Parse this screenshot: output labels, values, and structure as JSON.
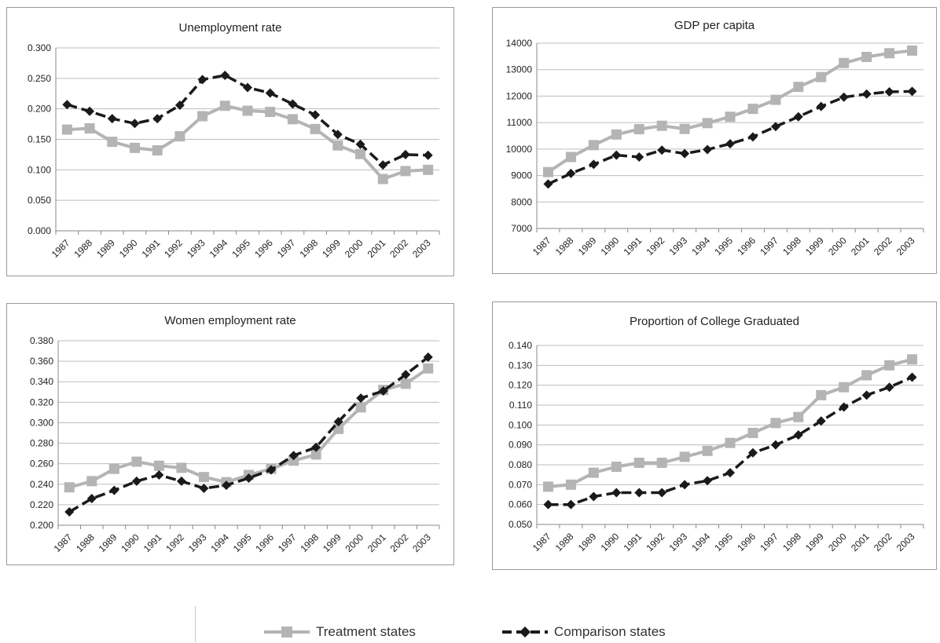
{
  "colors": {
    "treatment": "#b4b4b4",
    "comparison": "#1a1a1a",
    "grid": "#bdbdbd",
    "axis": "#888888",
    "text": "#222222"
  },
  "legend": {
    "treatment_label": "Treatment states",
    "comparison_label": "Comparison states"
  },
  "chart_data": [
    {
      "type": "line",
      "title": "Unemployment rate",
      "xlabel": "",
      "ylabel": "",
      "categories": [
        "1987",
        "1988",
        "1989",
        "1990",
        "1991",
        "1992",
        "1993",
        "1994",
        "1995",
        "1996",
        "1997",
        "1998",
        "1999",
        "2000",
        "2001",
        "2002",
        "2003"
      ],
      "ylim": [
        0,
        0.3
      ],
      "yticks": [
        "0.000",
        "0.050",
        "0.100",
        "0.150",
        "0.200",
        "0.250",
        "0.300"
      ],
      "grid": true,
      "series": [
        {
          "name": "Treatment states",
          "values": [
            0.166,
            0.168,
            0.146,
            0.136,
            0.132,
            0.155,
            0.188,
            0.205,
            0.197,
            0.195,
            0.183,
            0.167,
            0.14,
            0.126,
            0.085,
            0.098,
            0.1
          ]
        },
        {
          "name": "Comparison states",
          "values": [
            0.207,
            0.196,
            0.184,
            0.176,
            0.184,
            0.206,
            0.248,
            0.255,
            0.235,
            0.226,
            0.208,
            0.19,
            0.158,
            0.142,
            0.108,
            0.125,
            0.124
          ]
        }
      ]
    },
    {
      "type": "line",
      "title": "GDP per capita",
      "xlabel": "",
      "ylabel": "",
      "categories": [
        "1987",
        "1988",
        "1989",
        "1990",
        "1991",
        "1992",
        "1993",
        "1994",
        "1995",
        "1996",
        "1997",
        "1998",
        "1999",
        "2000",
        "2001",
        "2002",
        "2003"
      ],
      "ylim": [
        7000,
        14000
      ],
      "yticks": [
        "7000",
        "8000",
        "9000",
        "10000",
        "11000",
        "12000",
        "13000",
        "14000"
      ],
      "grid": true,
      "series": [
        {
          "name": "Treatment states",
          "values": [
            9130,
            9700,
            10150,
            10550,
            10750,
            10880,
            10760,
            10980,
            11220,
            11520,
            11860,
            12350,
            12720,
            13250,
            13480,
            13620,
            13720
          ]
        },
        {
          "name": "Comparison states",
          "values": [
            8680,
            9080,
            9420,
            9770,
            9700,
            9960,
            9830,
            9980,
            10200,
            10460,
            10850,
            11220,
            11610,
            11960,
            12080,
            12160,
            12180
          ]
        }
      ]
    },
    {
      "type": "line",
      "title": "Women employment rate",
      "xlabel": "",
      "ylabel": "",
      "categories": [
        "1987",
        "1988",
        "1989",
        "1990",
        "1991",
        "1992",
        "1993",
        "1994",
        "1995",
        "1996",
        "1997",
        "1998",
        "1999",
        "2000",
        "2001",
        "2002",
        "2003"
      ],
      "ylim": [
        0.2,
        0.38
      ],
      "yticks": [
        "0.200",
        "0.220",
        "0.240",
        "0.260",
        "0.280",
        "0.300",
        "0.320",
        "0.340",
        "0.360",
        "0.380"
      ],
      "grid": true,
      "series": [
        {
          "name": "Treatment states",
          "values": [
            0.237,
            0.243,
            0.255,
            0.262,
            0.258,
            0.256,
            0.247,
            0.242,
            0.249,
            0.255,
            0.263,
            0.269,
            0.294,
            0.315,
            0.332,
            0.338,
            0.353
          ]
        },
        {
          "name": "Comparison states",
          "values": [
            0.213,
            0.226,
            0.234,
            0.243,
            0.249,
            0.243,
            0.236,
            0.239,
            0.246,
            0.254,
            0.268,
            0.276,
            0.301,
            0.324,
            0.331,
            0.347,
            0.364
          ]
        }
      ]
    },
    {
      "type": "line",
      "title": "Proportion of College Graduated",
      "xlabel": "",
      "ylabel": "",
      "categories": [
        "1987",
        "1988",
        "1989",
        "1990",
        "1991",
        "1992",
        "1993",
        "1994",
        "1995",
        "1996",
        "1997",
        "1998",
        "1999",
        "2000",
        "2001",
        "2002",
        "2003"
      ],
      "ylim": [
        0.05,
        0.14
      ],
      "yticks": [
        "0.050",
        "0.060",
        "0.070",
        "0.080",
        "0.090",
        "0.100",
        "0.110",
        "0.120",
        "0.130",
        "0.140"
      ],
      "grid": true,
      "series": [
        {
          "name": "Treatment states",
          "values": [
            0.069,
            0.07,
            0.076,
            0.079,
            0.081,
            0.081,
            0.084,
            0.087,
            0.091,
            0.096,
            0.101,
            0.104,
            0.115,
            0.119,
            0.125,
            0.13,
            0.133
          ]
        },
        {
          "name": "Comparison states",
          "values": [
            0.06,
            0.06,
            0.064,
            0.066,
            0.066,
            0.066,
            0.07,
            0.072,
            0.076,
            0.086,
            0.09,
            0.095,
            0.102,
            0.109,
            0.115,
            0.119,
            0.124
          ]
        }
      ]
    }
  ]
}
